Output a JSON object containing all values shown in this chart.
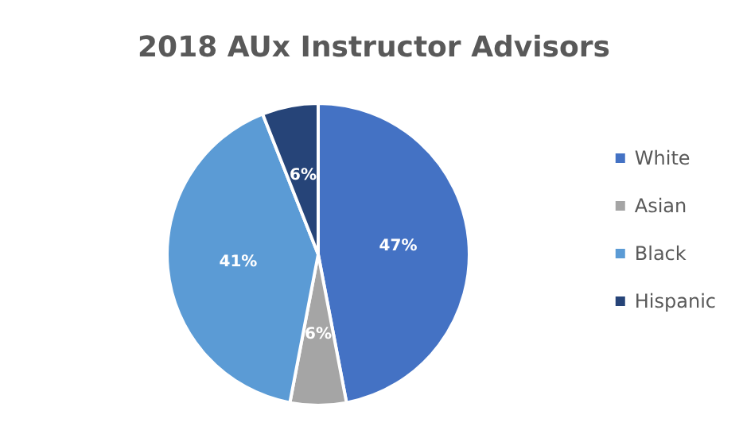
{
  "chart_data": {
    "type": "pie",
    "title": "2018 AUx Instructor Advisors",
    "categories": [
      "White",
      "Asian",
      "Black",
      "Hispanic"
    ],
    "values": [
      47,
      6,
      41,
      6
    ],
    "value_labels": [
      "47%",
      "6%",
      "41%",
      "6%"
    ],
    "colors": [
      "#4472c4",
      "#a5a5a5",
      "#5b9bd5",
      "#264478"
    ],
    "legend": "right"
  }
}
